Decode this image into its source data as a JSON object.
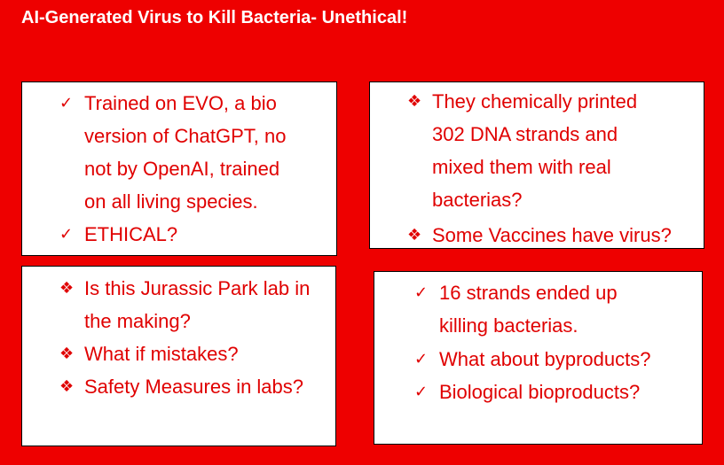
{
  "title": "AI-Generated Virus to Kill Bacteria- Unethical!",
  "colors": {
    "background": "#ee0000",
    "text": "#e00000",
    "title": "#ffffff"
  },
  "boxes": [
    {
      "items": [
        {
          "icon": "check-icon",
          "bullet": "✓",
          "text": "Trained on EVO, a bio\nversion of ChatGPT, no\nnot by OpenAI, trained\non all living species."
        },
        {
          "icon": "check-icon",
          "bullet": "✓",
          "text": "ETHICAL?"
        }
      ]
    },
    {
      "items": [
        {
          "icon": "diamond-bullet-icon",
          "bullet": "❖",
          "text": "They chemically printed\n302 DNA strands and\nmixed them with real\nbacterias?"
        },
        {
          "icon": "diamond-bullet-icon",
          "bullet": "❖",
          "text": "Some Vaccines have virus?"
        }
      ]
    },
    {
      "items": [
        {
          "icon": "diamond-bullet-icon",
          "bullet": "❖",
          "text": "Is this Jurassic Park lab in\nthe making?"
        },
        {
          "icon": "diamond-bullet-icon",
          "bullet": "❖",
          "text": "What if mistakes?"
        },
        {
          "icon": "diamond-bullet-icon",
          "bullet": "❖",
          "text": "Safety Measures in labs?"
        }
      ]
    },
    {
      "items": [
        {
          "icon": "check-icon",
          "bullet": "✓",
          "text": "16 strands ended up\nkilling bacterias."
        },
        {
          "icon": "check-icon",
          "bullet": "✓",
          "text": "What about byproducts?"
        },
        {
          "icon": "check-icon",
          "bullet": "✓",
          "text": "Biological bioproducts?"
        }
      ]
    }
  ]
}
